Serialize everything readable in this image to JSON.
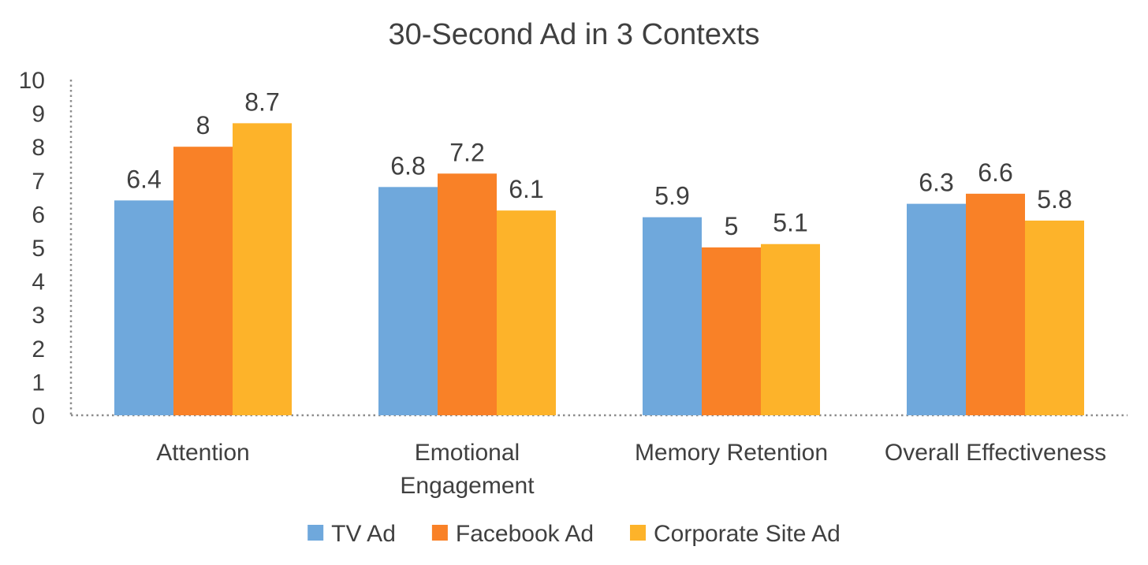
{
  "chart_data": {
    "type": "bar",
    "title": "30-Second Ad in 3 Contexts",
    "xlabel": "",
    "ylabel": "",
    "ylim": [
      0,
      10
    ],
    "yticks": [
      0,
      1,
      2,
      3,
      4,
      5,
      6,
      7,
      8,
      9,
      10
    ],
    "categories": [
      "Attention",
      "Emotional Engagement",
      "Memory Retention",
      "Overall Effectiveness"
    ],
    "category_lines": [
      [
        "Attention"
      ],
      [
        "Emotional",
        "Engagement"
      ],
      [
        "Memory Retention"
      ],
      [
        "Overall Effectiveness"
      ]
    ],
    "series": [
      {
        "name": "TV Ad",
        "color": "#6FA8DC",
        "values": [
          6.4,
          6.8,
          5.9,
          6.3
        ],
        "labels": [
          "6.4",
          "6.8",
          "5.9",
          "6.3"
        ]
      },
      {
        "name": "Facebook Ad",
        "color": "#F98127",
        "values": [
          8,
          7.2,
          5,
          6.6
        ],
        "labels": [
          "8",
          "7.2",
          "5",
          "6.6"
        ]
      },
      {
        "name": "Corporate Site Ad",
        "color": "#FDB32A",
        "values": [
          8.7,
          6.1,
          5.1,
          5.8
        ],
        "labels": [
          "8.7",
          "6.1",
          "5.1",
          "5.8"
        ]
      }
    ],
    "legend_position": "bottom",
    "grid": false,
    "axis_style": "dotted"
  }
}
